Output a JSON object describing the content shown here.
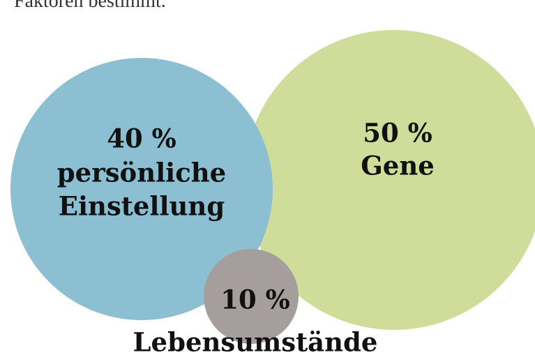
{
  "intro": {
    "text": "Faktoren bestimmt."
  },
  "nodes": [
    {
      "value": "40 %",
      "label": [
        "persönliche",
        "Einstellung"
      ]
    },
    {
      "value": "50 %",
      "label": [
        "Gene"
      ]
    },
    {
      "value": "10 %",
      "label": [
        "Lebensumstände"
      ]
    }
  ]
}
